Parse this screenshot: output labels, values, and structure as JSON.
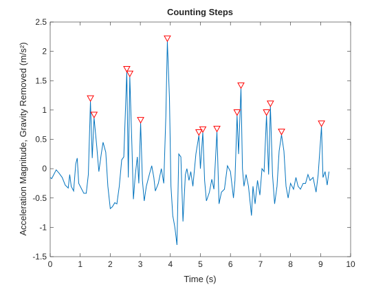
{
  "chart_data": {
    "type": "line",
    "title": "Counting Steps",
    "xlabel": "Time (s)",
    "ylabel": "Acceleration Magnitude, Gravity Removed (m/s²)",
    "xlim": [
      0,
      10
    ],
    "ylim": [
      -1.5,
      2.5
    ],
    "xticks": [
      0,
      1,
      2,
      3,
      4,
      5,
      6,
      7,
      8,
      9,
      10
    ],
    "yticks": [
      -1.5,
      -1,
      -0.5,
      0,
      0.5,
      1,
      1.5,
      2,
      2.5
    ],
    "series": [
      {
        "color": "#0072bd",
        "marker": "none",
        "x": [
          0,
          0.05,
          0.1,
          0.2,
          0.3,
          0.4,
          0.5,
          0.6,
          0.65,
          0.7,
          0.78,
          0.85,
          0.9,
          0.95,
          1.05,
          1.12,
          1.2,
          1.27,
          1.34,
          1.4,
          1.46,
          1.55,
          1.62,
          1.7,
          1.76,
          1.85,
          1.92,
          2.0,
          2.07,
          2.15,
          2.22,
          2.3,
          2.38,
          2.45,
          2.55,
          2.6,
          2.65,
          2.72,
          2.77,
          2.83,
          2.9,
          2.95,
          3.01,
          3.07,
          3.13,
          3.2,
          3.3,
          3.38,
          3.45,
          3.5,
          3.6,
          3.7,
          3.78,
          3.85,
          3.9,
          3.97,
          4.02,
          4.08,
          4.15,
          4.22,
          4.28,
          4.35,
          4.42,
          4.5,
          4.55,
          4.62,
          4.68,
          4.75,
          4.85,
          4.95,
          5.0,
          5.08,
          5.14,
          5.2,
          5.3,
          5.38,
          5.45,
          5.55,
          5.62,
          5.7,
          5.8,
          5.9,
          6.0,
          6.1,
          6.15,
          6.22,
          6.27,
          6.35,
          6.4,
          6.45,
          6.52,
          6.6,
          6.7,
          6.75,
          6.82,
          6.9,
          6.98,
          7.05,
          7.12,
          7.2,
          7.27,
          7.33,
          7.4,
          7.47,
          7.55,
          7.62,
          7.7,
          7.78,
          7.85,
          7.92,
          8.0,
          8.1,
          8.18,
          8.25,
          8.33,
          8.42,
          8.5,
          8.58,
          8.65,
          8.75,
          8.85,
          8.92,
          9.03,
          9.08,
          9.15,
          9.22,
          9.28
        ],
        "values": [
          -0.15,
          -0.17,
          -0.12,
          -0.02,
          -0.08,
          -0.15,
          -0.28,
          -0.33,
          -0.1,
          -0.3,
          -0.38,
          0.08,
          0.18,
          -0.25,
          -0.35,
          -0.42,
          -0.42,
          -0.1,
          1.15,
          0.18,
          0.87,
          0.38,
          -0.05,
          0.25,
          0.45,
          0.28,
          -0.3,
          -0.68,
          -0.65,
          -0.58,
          -0.6,
          -0.3,
          0.15,
          0.2,
          1.65,
          -0.15,
          1.57,
          0.4,
          -0.52,
          -0.12,
          0.2,
          -0.25,
          0.78,
          -0.2,
          -0.55,
          -0.3,
          -0.1,
          0.05,
          -0.15,
          -0.38,
          -0.25,
          0.0,
          -0.25,
          0.9,
          2.17,
          1.2,
          -0.3,
          -0.8,
          -1.0,
          -1.3,
          0.25,
          0.2,
          -0.9,
          -0.1,
          0.0,
          -0.2,
          -0.05,
          -0.3,
          0.25,
          0.57,
          0.0,
          0.62,
          -0.2,
          -0.55,
          -0.4,
          -0.18,
          -0.35,
          0.63,
          -0.6,
          -0.4,
          -0.35,
          0.05,
          -0.05,
          -0.5,
          -0.2,
          0.91,
          0.25,
          1.37,
          0.0,
          -0.3,
          -0.1,
          -0.3,
          -0.8,
          -0.3,
          -0.6,
          -0.2,
          -0.45,
          0.0,
          -0.05,
          0.91,
          -0.1,
          1.06,
          -0.1,
          -0.6,
          -0.3,
          0.3,
          0.58,
          0.3,
          -0.3,
          -0.5,
          -0.25,
          -0.35,
          -0.15,
          -0.3,
          -0.35,
          -0.25,
          -0.25,
          -0.1,
          -0.2,
          -0.15,
          -0.4,
          -0.1,
          0.72,
          -0.15,
          -0.05,
          -0.28,
          -0.05
        ]
      },
      {
        "color": "#ff0000",
        "marker": "triangle-down",
        "x": [
          1.34,
          1.46,
          2.55,
          2.65,
          3.01,
          3.9,
          4.95,
          5.08,
          5.55,
          6.22,
          6.35,
          7.2,
          7.33,
          7.7,
          9.03
        ],
        "values": [
          1.15,
          0.87,
          1.65,
          1.57,
          0.78,
          2.17,
          0.57,
          0.62,
          0.63,
          0.91,
          1.37,
          0.91,
          1.06,
          0.58,
          0.72
        ]
      }
    ]
  }
}
